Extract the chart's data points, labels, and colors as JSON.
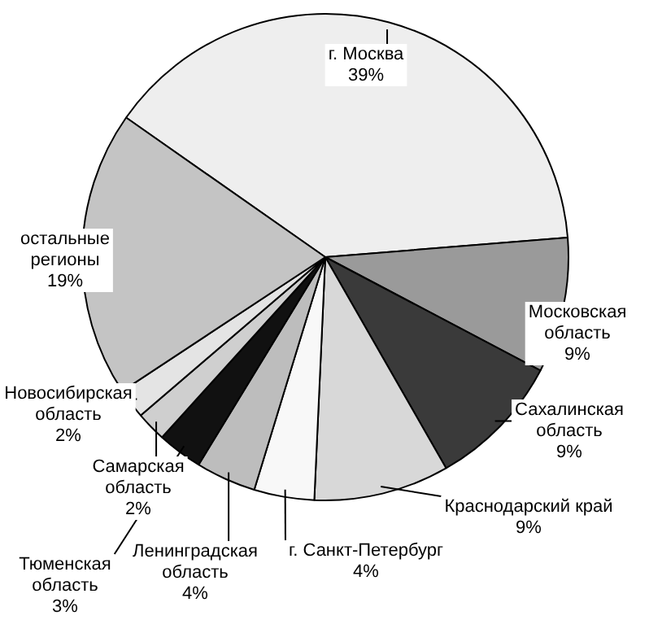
{
  "chart_data": {
    "type": "pie",
    "categories": [
      "г. Москва",
      "Московская\nобласть",
      "Сахалинская\nобласть",
      "Краснодарский край",
      "г. Санкт-Петербург",
      "Ленинградская\nобласть",
      "Тюменская\nобласть",
      "Самарская\nобласть",
      "Новосибирская\nобласть",
      "остальные\nрегионы"
    ],
    "values": [
      39,
      9,
      9,
      9,
      4,
      4,
      3,
      2,
      2,
      19
    ],
    "value_labels": [
      "39%",
      "9%",
      "9%",
      "9%",
      "4%",
      "4%",
      "3%",
      "2%",
      "2%",
      "19%"
    ],
    "colors": [
      "#eeeeee",
      "#9a9a9a",
      "#3a3a3a",
      "#d8d8d8",
      "#f8f8f8",
      "#bdbdbd",
      "#111111",
      "#cfcfcf",
      "#e4e4e4",
      "#c4c4c4"
    ],
    "legend": false
  }
}
